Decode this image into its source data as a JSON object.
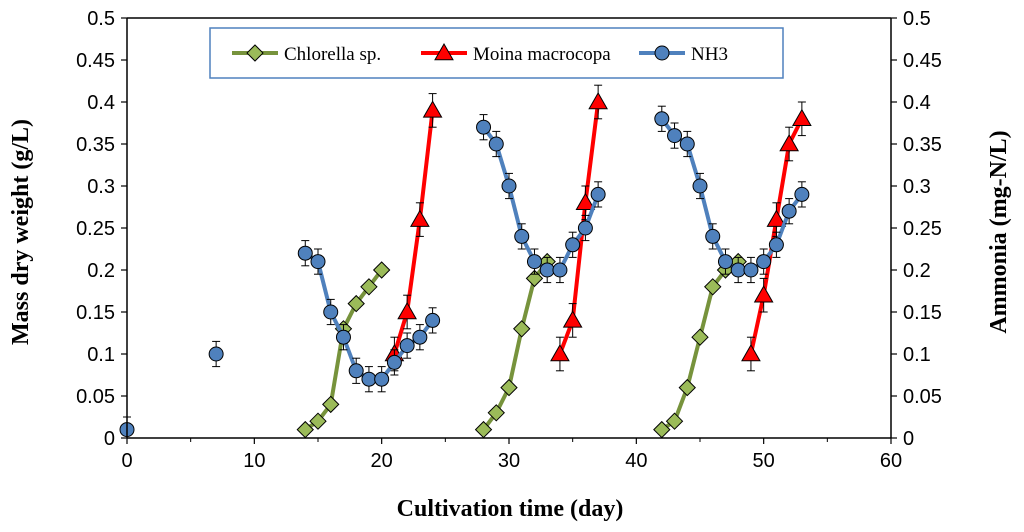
{
  "chart_data": {
    "type": "line",
    "xlabel": "Cultivation time (day)",
    "ylabel": "Mass dry weight (g/L)",
    "y2label": "Ammonia (mg-N/L)",
    "xlim": [
      0,
      60
    ],
    "ylim": [
      0,
      0.5
    ],
    "y2lim": [
      0,
      0.5
    ],
    "x_ticks": [
      "0",
      "10",
      "20",
      "30",
      "40",
      "50",
      "60"
    ],
    "y_ticks": [
      "0",
      "0.05",
      "0.1",
      "0.15",
      "0.2",
      "0.25",
      "0.3",
      "0.35",
      "0.4",
      "0.45",
      "0.5"
    ],
    "y2_ticks": [
      "0",
      "0.05",
      "0.1",
      "0.15",
      "0.2",
      "0.25",
      "0.3",
      "0.35",
      "0.4",
      "0.45",
      "0.5"
    ],
    "legend": [
      "Chlorella sp.",
      "Moina macrocopa",
      "NH3"
    ],
    "legend_position": "top-center",
    "series": [
      {
        "name": "Chlorella sp.",
        "color": "#77933C",
        "marker": "diamond",
        "segments": [
          [
            [
              14,
              0.01
            ],
            [
              15,
              0.02
            ],
            [
              16,
              0.04
            ],
            [
              17,
              0.13
            ],
            [
              18,
              0.16
            ],
            [
              19,
              0.18
            ],
            [
              20,
              0.2
            ]
          ],
          [
            [
              28,
              0.01
            ],
            [
              29,
              0.03
            ],
            [
              30,
              0.06
            ],
            [
              31,
              0.13
            ],
            [
              32,
              0.19
            ],
            [
              33,
              0.21
            ]
          ],
          [
            [
              42,
              0.01
            ],
            [
              43,
              0.02
            ],
            [
              44,
              0.06
            ],
            [
              45,
              0.12
            ],
            [
              46,
              0.18
            ],
            [
              47,
              0.2
            ],
            [
              48,
              0.21
            ]
          ]
        ],
        "error": 0.005
      },
      {
        "name": "Moina macrocopa",
        "color": "#FF0000",
        "marker": "triangle",
        "segments": [
          [
            [
              21,
              0.1
            ],
            [
              22,
              0.15
            ],
            [
              23,
              0.26
            ],
            [
              24,
              0.39
            ]
          ],
          [
            [
              34,
              0.1
            ],
            [
              35,
              0.14
            ],
            [
              36,
              0.28
            ],
            [
              37,
              0.4
            ]
          ],
          [
            [
              49,
              0.1
            ],
            [
              50,
              0.17
            ],
            [
              51,
              0.26
            ],
            [
              52,
              0.35
            ],
            [
              53,
              0.38
            ]
          ]
        ],
        "error": 0.02
      },
      {
        "name": "NH3",
        "color": "#4F81BD",
        "marker": "circle",
        "singles": [
          [
            0,
            0.01
          ],
          [
            7,
            0.1
          ]
        ],
        "segments": [
          [
            [
              14,
              0.22
            ],
            [
              15,
              0.21
            ],
            [
              16,
              0.15
            ],
            [
              17,
              0.12
            ],
            [
              18,
              0.08
            ],
            [
              19,
              0.07
            ],
            [
              20,
              0.07
            ],
            [
              21,
              0.09
            ],
            [
              22,
              0.11
            ],
            [
              23,
              0.12
            ],
            [
              24,
              0.14
            ]
          ],
          [
            [
              28,
              0.37
            ],
            [
              29,
              0.35
            ],
            [
              30,
              0.3
            ],
            [
              31,
              0.24
            ],
            [
              32,
              0.21
            ],
            [
              33,
              0.2
            ],
            [
              34,
              0.2
            ],
            [
              35,
              0.23
            ],
            [
              36,
              0.25
            ],
            [
              37,
              0.29
            ]
          ],
          [
            [
              42,
              0.38
            ],
            [
              43,
              0.36
            ],
            [
              44,
              0.35
            ],
            [
              45,
              0.3
            ],
            [
              46,
              0.24
            ],
            [
              47,
              0.21
            ],
            [
              48,
              0.2
            ],
            [
              49,
              0.2
            ],
            [
              50,
              0.21
            ],
            [
              51,
              0.23
            ],
            [
              52,
              0.27
            ],
            [
              53,
              0.29
            ]
          ]
        ],
        "error": 0.015
      }
    ]
  }
}
